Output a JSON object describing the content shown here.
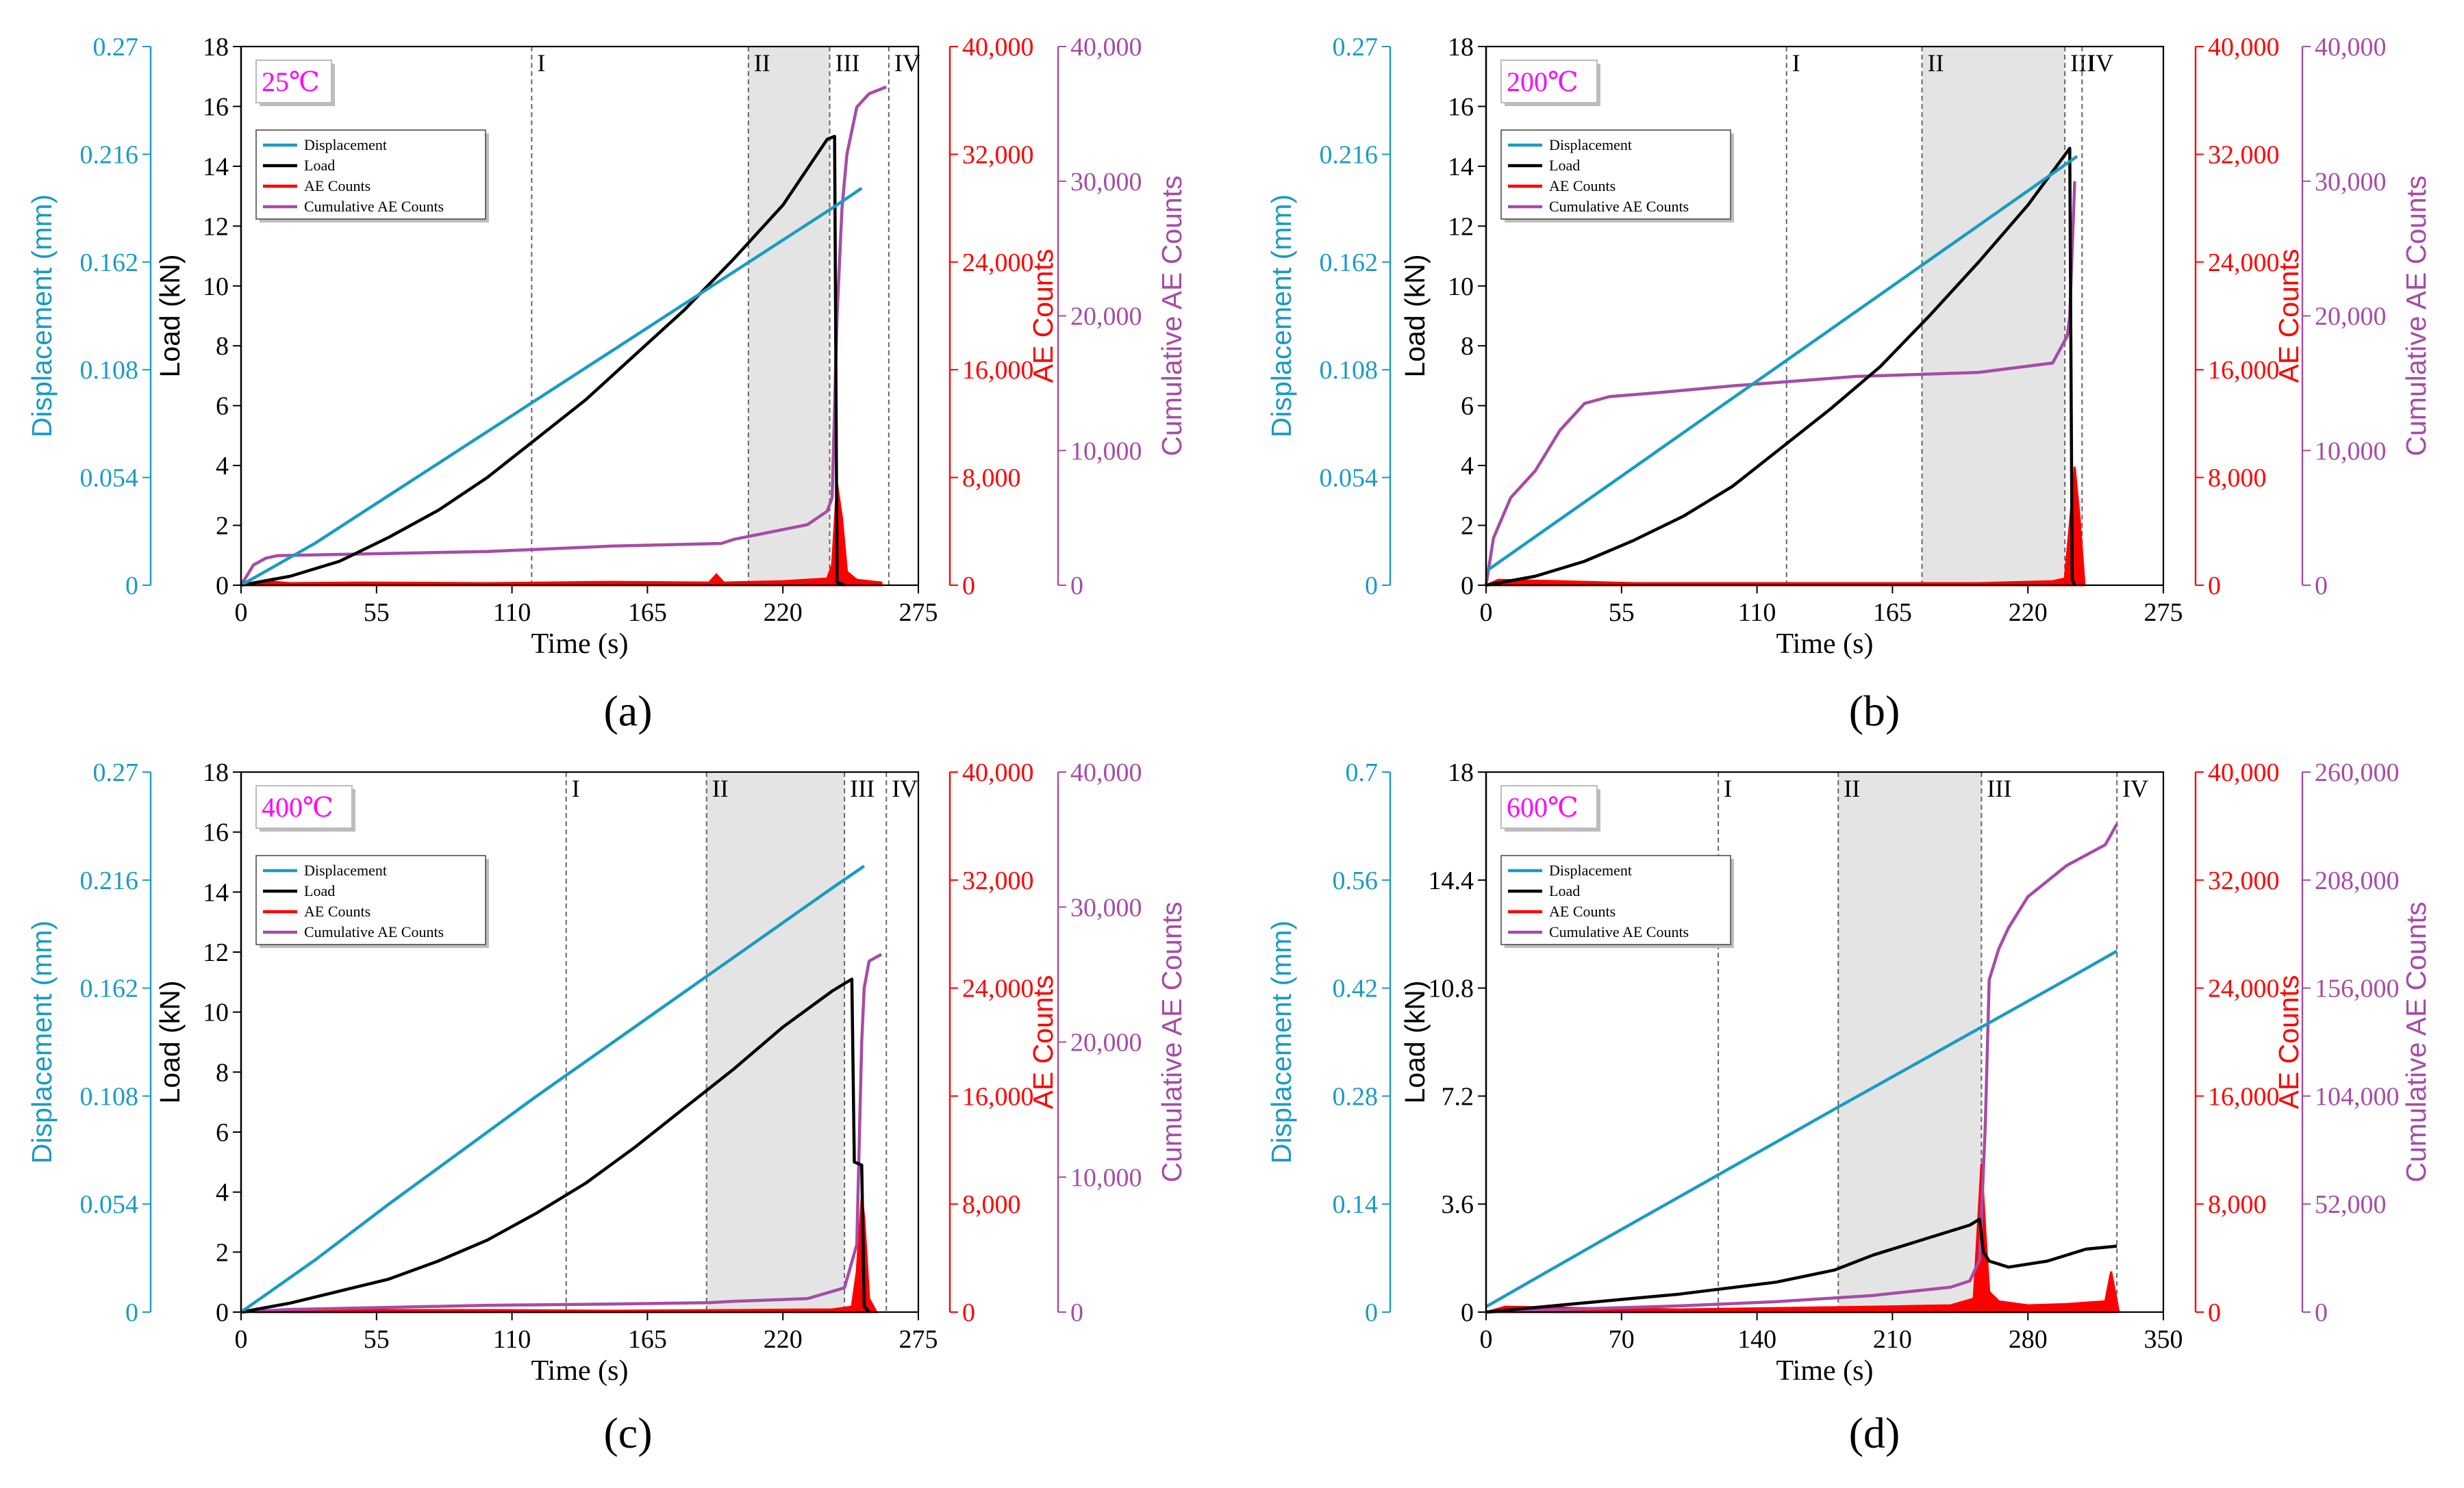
{
  "colors": {
    "displacement": "#1a9bc4",
    "load": "#000000",
    "ae": "#ff0000",
    "cumulative": "#a64ca6",
    "shade": "#e4e4e4",
    "temperature_text": "#ff00ff"
  },
  "chart_data": [
    {
      "type": "line",
      "panel_label": "(a)",
      "temperature": "25℃",
      "xlabel": "Time (s)",
      "ylabel_load": "Load (kN)",
      "ylabel_displacement": "Displacement (mm)",
      "ylabel_ae": "AE Counts",
      "ylabel_cumulative": "Cumulative AE Counts",
      "xlim": [
        0,
        275
      ],
      "xticks": [
        0,
        55,
        110,
        165,
        220,
        275
      ],
      "xtick_labels": [
        "0",
        "55",
        "110",
        "165",
        "220",
        "275"
      ],
      "load_lim": [
        0,
        18
      ],
      "load_ticks": [
        0,
        2,
        4,
        6,
        8,
        10,
        12,
        14,
        16,
        18
      ],
      "load_tick_labels": [
        "0",
        "2",
        "4",
        "6",
        "8",
        "10",
        "12",
        "14",
        "16",
        "18"
      ],
      "disp_lim": [
        0,
        0.27
      ],
      "disp_ticks": [
        0,
        0.054,
        0.108,
        0.162,
        0.216,
        0.27
      ],
      "disp_tick_labels": [
        "0",
        "0.054",
        "0.108",
        "0.162",
        "0.216",
        "0.27"
      ],
      "ae_lim": [
        0,
        40000
      ],
      "ae_ticks": [
        0,
        8000,
        16000,
        24000,
        32000,
        40000
      ],
      "ae_tick_labels": [
        "0",
        "8,000",
        "16,000",
        "24,000",
        "32,000",
        "40,000"
      ],
      "cum_lim": [
        0,
        40000
      ],
      "cum_ticks": [
        0,
        10000,
        20000,
        30000,
        40000
      ],
      "cum_tick_labels": [
        "0",
        "10,000",
        "20,000",
        "30,000",
        "40,000"
      ],
      "stage_lines": [
        118,
        206,
        239,
        263
      ],
      "stage_labels": [
        "I",
        "II",
        "III",
        "IV"
      ],
      "shade_range": [
        206,
        239
      ],
      "legend": [
        "Displacement",
        "Load",
        "AE Counts",
        "Cumulative AE Counts"
      ],
      "series": [
        {
          "name": "Displacement",
          "axis": "disp",
          "x": [
            0,
            30,
            60,
            90,
            120,
            150,
            180,
            210,
            240,
            252
          ],
          "y": [
            0,
            0.021,
            0.045,
            0.069,
            0.093,
            0.117,
            0.141,
            0.165,
            0.189,
            0.199
          ]
        },
        {
          "name": "Load",
          "axis": "load",
          "x": [
            0,
            20,
            40,
            60,
            80,
            100,
            120,
            140,
            160,
            180,
            200,
            220,
            238,
            241,
            242,
            245
          ],
          "y": [
            0,
            0.3,
            0.8,
            1.6,
            2.5,
            3.6,
            4.9,
            6.2,
            7.7,
            9.2,
            10.9,
            12.7,
            14.9,
            15.0,
            0.1,
            0
          ]
        },
        {
          "name": "AE Counts",
          "axis": "ae",
          "x": [
            0,
            10,
            20,
            50,
            100,
            150,
            190,
            193,
            196,
            220,
            238,
            240,
            242,
            244,
            246,
            250,
            260
          ],
          "y": [
            0,
            300,
            150,
            200,
            150,
            250,
            200,
            800,
            200,
            300,
            500,
            1500,
            7500,
            5000,
            1000,
            400,
            200
          ]
        },
        {
          "name": "Cumulative AE Counts",
          "axis": "cum",
          "x": [
            0,
            5,
            10,
            15,
            100,
            150,
            195,
            200,
            230,
            238,
            240,
            242,
            244,
            246,
            250,
            255,
            262
          ],
          "y": [
            0,
            1500,
            2000,
            2200,
            2500,
            2900,
            3100,
            3400,
            4500,
            5500,
            6500,
            20000,
            28000,
            32000,
            35500,
            36500,
            37000
          ]
        }
      ]
    },
    {
      "type": "line",
      "panel_label": "(b)",
      "temperature": "200℃",
      "xlabel": "Time (s)",
      "ylabel_load": "Load (kN)",
      "ylabel_displacement": "Displacement (mm)",
      "ylabel_ae": "AE Counts",
      "ylabel_cumulative": "Cumulative AE Counts",
      "xlim": [
        0,
        275
      ],
      "xticks": [
        0,
        55,
        110,
        165,
        220,
        275
      ],
      "xtick_labels": [
        "0",
        "55",
        "110",
        "165",
        "220",
        "275"
      ],
      "load_lim": [
        0,
        18
      ],
      "load_ticks": [
        0,
        2,
        4,
        6,
        8,
        10,
        12,
        14,
        16,
        18
      ],
      "load_tick_labels": [
        "0",
        "2",
        "4",
        "6",
        "8",
        "10",
        "12",
        "14",
        "16",
        "18"
      ],
      "disp_lim": [
        0,
        0.27
      ],
      "disp_ticks": [
        0,
        0.054,
        0.108,
        0.162,
        0.216,
        0.27
      ],
      "disp_tick_labels": [
        "0",
        "0.054",
        "0.108",
        "0.162",
        "0.216",
        "0.27"
      ],
      "ae_lim": [
        0,
        40000
      ],
      "ae_ticks": [
        0,
        8000,
        16000,
        24000,
        32000,
        40000
      ],
      "ae_tick_labels": [
        "0",
        "8,000",
        "16,000",
        "24,000",
        "32,000",
        "40,000"
      ],
      "cum_lim": [
        0,
        40000
      ],
      "cum_ticks": [
        0,
        10000,
        20000,
        30000,
        40000
      ],
      "cum_tick_labels": [
        "0",
        "10,000",
        "20,000",
        "30,000",
        "40,000"
      ],
      "stage_lines": [
        122,
        177,
        235,
        242
      ],
      "stage_labels": [
        "I",
        "II",
        "III",
        "IV"
      ],
      "shade_range": [
        177,
        235
      ],
      "legend": [
        "Displacement",
        "Load",
        "AE Counts",
        "Cumulative AE Counts"
      ],
      "series": [
        {
          "name": "Displacement",
          "axis": "disp",
          "x": [
            0,
            30,
            60,
            90,
            120,
            150,
            180,
            210,
            240
          ],
          "y": [
            0.007,
            0.033,
            0.059,
            0.085,
            0.111,
            0.137,
            0.163,
            0.189,
            0.215
          ]
        },
        {
          "name": "Load",
          "axis": "load",
          "x": [
            0,
            20,
            40,
            60,
            80,
            100,
            120,
            140,
            160,
            180,
            200,
            220,
            237,
            238,
            239
          ],
          "y": [
            0,
            0.3,
            0.8,
            1.5,
            2.3,
            3.3,
            4.6,
            5.9,
            7.3,
            9.0,
            10.8,
            12.7,
            14.6,
            0.2,
            0
          ]
        },
        {
          "name": "AE Counts",
          "axis": "ae",
          "x": [
            0,
            5,
            30,
            60,
            100,
            150,
            200,
            230,
            235,
            237,
            239,
            241,
            243
          ],
          "y": [
            0,
            400,
            300,
            150,
            150,
            150,
            150,
            300,
            500,
            4500,
            8800,
            5000,
            0
          ]
        },
        {
          "name": "Cumulative AE Counts",
          "axis": "cum",
          "x": [
            0,
            3,
            10,
            20,
            30,
            40,
            50,
            70,
            100,
            150,
            200,
            230,
            236,
            237,
            239
          ],
          "y": [
            0,
            3500,
            6500,
            8500,
            11500,
            13500,
            14000,
            14300,
            14800,
            15500,
            15800,
            16500,
            18500,
            20000,
            30000
          ]
        }
      ]
    },
    {
      "type": "line",
      "panel_label": "(c)",
      "temperature": "400℃",
      "xlabel": "Time (s)",
      "ylabel_load": "Load (kN)",
      "ylabel_displacement": "Displacement (mm)",
      "ylabel_ae": "AE Counts",
      "ylabel_cumulative": "Cumulative AE Counts",
      "xlim": [
        0,
        275
      ],
      "xticks": [
        0,
        55,
        110,
        165,
        220,
        275
      ],
      "xtick_labels": [
        "0",
        "55",
        "110",
        "165",
        "220",
        "275"
      ],
      "load_lim": [
        0,
        18
      ],
      "load_ticks": [
        0,
        2,
        4,
        6,
        8,
        10,
        12,
        14,
        16,
        18
      ],
      "load_tick_labels": [
        "0",
        "2",
        "4",
        "6",
        "8",
        "10",
        "12",
        "14",
        "16",
        "18"
      ],
      "disp_lim": [
        0,
        0.27
      ],
      "disp_ticks": [
        0,
        0.054,
        0.108,
        0.162,
        0.216,
        0.27
      ],
      "disp_tick_labels": [
        "0",
        "0.054",
        "0.108",
        "0.162",
        "0.216",
        "0.27"
      ],
      "ae_lim": [
        0,
        40000
      ],
      "ae_ticks": [
        0,
        8000,
        16000,
        24000,
        32000,
        40000
      ],
      "ae_tick_labels": [
        "0",
        "8,000",
        "16,000",
        "24,000",
        "32,000",
        "40,000"
      ],
      "cum_lim": [
        0,
        40000
      ],
      "cum_ticks": [
        0,
        10000,
        20000,
        30000,
        40000
      ],
      "cum_tick_labels": [
        "0",
        "10,000",
        "20,000",
        "30,000",
        "40,000"
      ],
      "stage_lines": [
        132,
        189,
        245,
        262
      ],
      "stage_labels": [
        "I",
        "II",
        "III",
        "IV"
      ],
      "shade_range": [
        189,
        245
      ],
      "legend": [
        "Displacement",
        "Load",
        "AE Counts",
        "Cumulative AE Counts"
      ],
      "series": [
        {
          "name": "Displacement",
          "axis": "disp",
          "x": [
            0,
            30,
            60,
            90,
            120,
            150,
            180,
            210,
            240,
            253
          ],
          "y": [
            0,
            0.026,
            0.054,
            0.081,
            0.108,
            0.134,
            0.16,
            0.186,
            0.212,
            0.223
          ]
        },
        {
          "name": "Load",
          "axis": "load",
          "x": [
            0,
            20,
            40,
            60,
            80,
            100,
            120,
            140,
            160,
            180,
            200,
            220,
            240,
            248,
            249,
            252,
            253,
            255
          ],
          "y": [
            0,
            0.3,
            0.7,
            1.1,
            1.7,
            2.4,
            3.3,
            4.3,
            5.5,
            6.8,
            8.1,
            9.5,
            10.7,
            11.1,
            5.0,
            4.9,
            0.2,
            0
          ]
        },
        {
          "name": "AE Counts",
          "axis": "ae",
          "x": [
            0,
            50,
            100,
            150,
            200,
            240,
            248,
            250,
            252,
            253,
            255,
            258
          ],
          "y": [
            0,
            150,
            150,
            100,
            150,
            200,
            400,
            3000,
            8500,
            7000,
            1000,
            0
          ]
        },
        {
          "name": "Cumulative AE Counts",
          "axis": "cum",
          "x": [
            0,
            20,
            100,
            150,
            190,
            200,
            230,
            245,
            250,
            252,
            253,
            255,
            260
          ],
          "y": [
            0,
            200,
            500,
            600,
            700,
            800,
            1000,
            1800,
            5000,
            20000,
            24000,
            26000,
            26500
          ]
        }
      ]
    },
    {
      "type": "line",
      "panel_label": "(d)",
      "temperature": "600℃",
      "xlabel": "Time (s)",
      "ylabel_load": "Load (kN)",
      "ylabel_displacement": "Displacement (mm)",
      "ylabel_ae": "AE Counts",
      "ylabel_cumulative": "Cumulative AE Counts",
      "xlim": [
        0,
        350
      ],
      "xticks": [
        0,
        70,
        140,
        210,
        280,
        350
      ],
      "xtick_labels": [
        "0",
        "70",
        "140",
        "210",
        "280",
        "350"
      ],
      "load_lim": [
        0,
        18
      ],
      "load_ticks": [
        0,
        3.6,
        7.2,
        10.8,
        14.4,
        18
      ],
      "load_tick_labels": [
        "0",
        "3.6",
        "7.2",
        "10.8",
        "14.4",
        "18"
      ],
      "disp_lim": [
        0,
        0.7
      ],
      "disp_ticks": [
        0,
        0.14,
        0.28,
        0.42,
        0.56,
        0.7
      ],
      "disp_tick_labels": [
        "0",
        "0.14",
        "0.28",
        "0.42",
        "0.56",
        "0.7"
      ],
      "ae_lim": [
        0,
        40000
      ],
      "ae_ticks": [
        0,
        8000,
        16000,
        24000,
        32000,
        40000
      ],
      "ae_tick_labels": [
        "0",
        "8,000",
        "16,000",
        "24,000",
        "32,000",
        "40,000"
      ],
      "cum_lim": [
        0,
        260000
      ],
      "cum_ticks": [
        0,
        52000,
        104000,
        156000,
        208000,
        260000
      ],
      "cum_tick_labels": [
        "0",
        "52,000",
        "104,000",
        "156,000",
        "208,000",
        "260,000"
      ],
      "stage_lines": [
        120,
        182,
        256,
        326
      ],
      "stage_labels": [
        "I",
        "II",
        "III",
        "IV"
      ],
      "shade_range": [
        182,
        256
      ],
      "legend": [
        "Displacement",
        "Load",
        "AE Counts",
        "Cumulative AE Counts"
      ],
      "series": [
        {
          "name": "Displacement",
          "axis": "disp",
          "x": [
            0,
            60,
            120,
            180,
            240,
            300,
            326
          ],
          "y": [
            0.007,
            0.093,
            0.178,
            0.263,
            0.347,
            0.431,
            0.468
          ]
        },
        {
          "name": "Load",
          "axis": "load",
          "x": [
            0,
            50,
            100,
            150,
            180,
            200,
            230,
            250,
            255,
            257,
            260,
            270,
            290,
            310,
            326
          ],
          "y": [
            0,
            0.3,
            0.6,
            1.0,
            1.4,
            1.9,
            2.5,
            2.9,
            3.1,
            2.0,
            1.7,
            1.5,
            1.7,
            2.1,
            2.2
          ]
        },
        {
          "name": "AE Counts",
          "axis": "ae",
          "x": [
            0,
            10,
            50,
            100,
            150,
            200,
            240,
            252,
            254,
            256,
            258,
            260,
            265,
            280,
            300,
            320,
            323,
            325,
            327
          ],
          "y": [
            0,
            400,
            300,
            200,
            300,
            400,
            500,
            1000,
            6000,
            11000,
            6000,
            1500,
            800,
            500,
            600,
            800,
            3000,
            1500,
            0
          ]
        },
        {
          "name": "Cumulative AE Counts",
          "axis": "cum",
          "x": [
            0,
            30,
            100,
            150,
            200,
            240,
            250,
            255,
            258,
            260,
            265,
            270,
            280,
            300,
            320,
            326
          ],
          "y": [
            0,
            1000,
            3000,
            5000,
            8000,
            12000,
            15000,
            25000,
            90000,
            160000,
            175000,
            185000,
            200000,
            215000,
            225000,
            235000
          ]
        }
      ]
    }
  ]
}
